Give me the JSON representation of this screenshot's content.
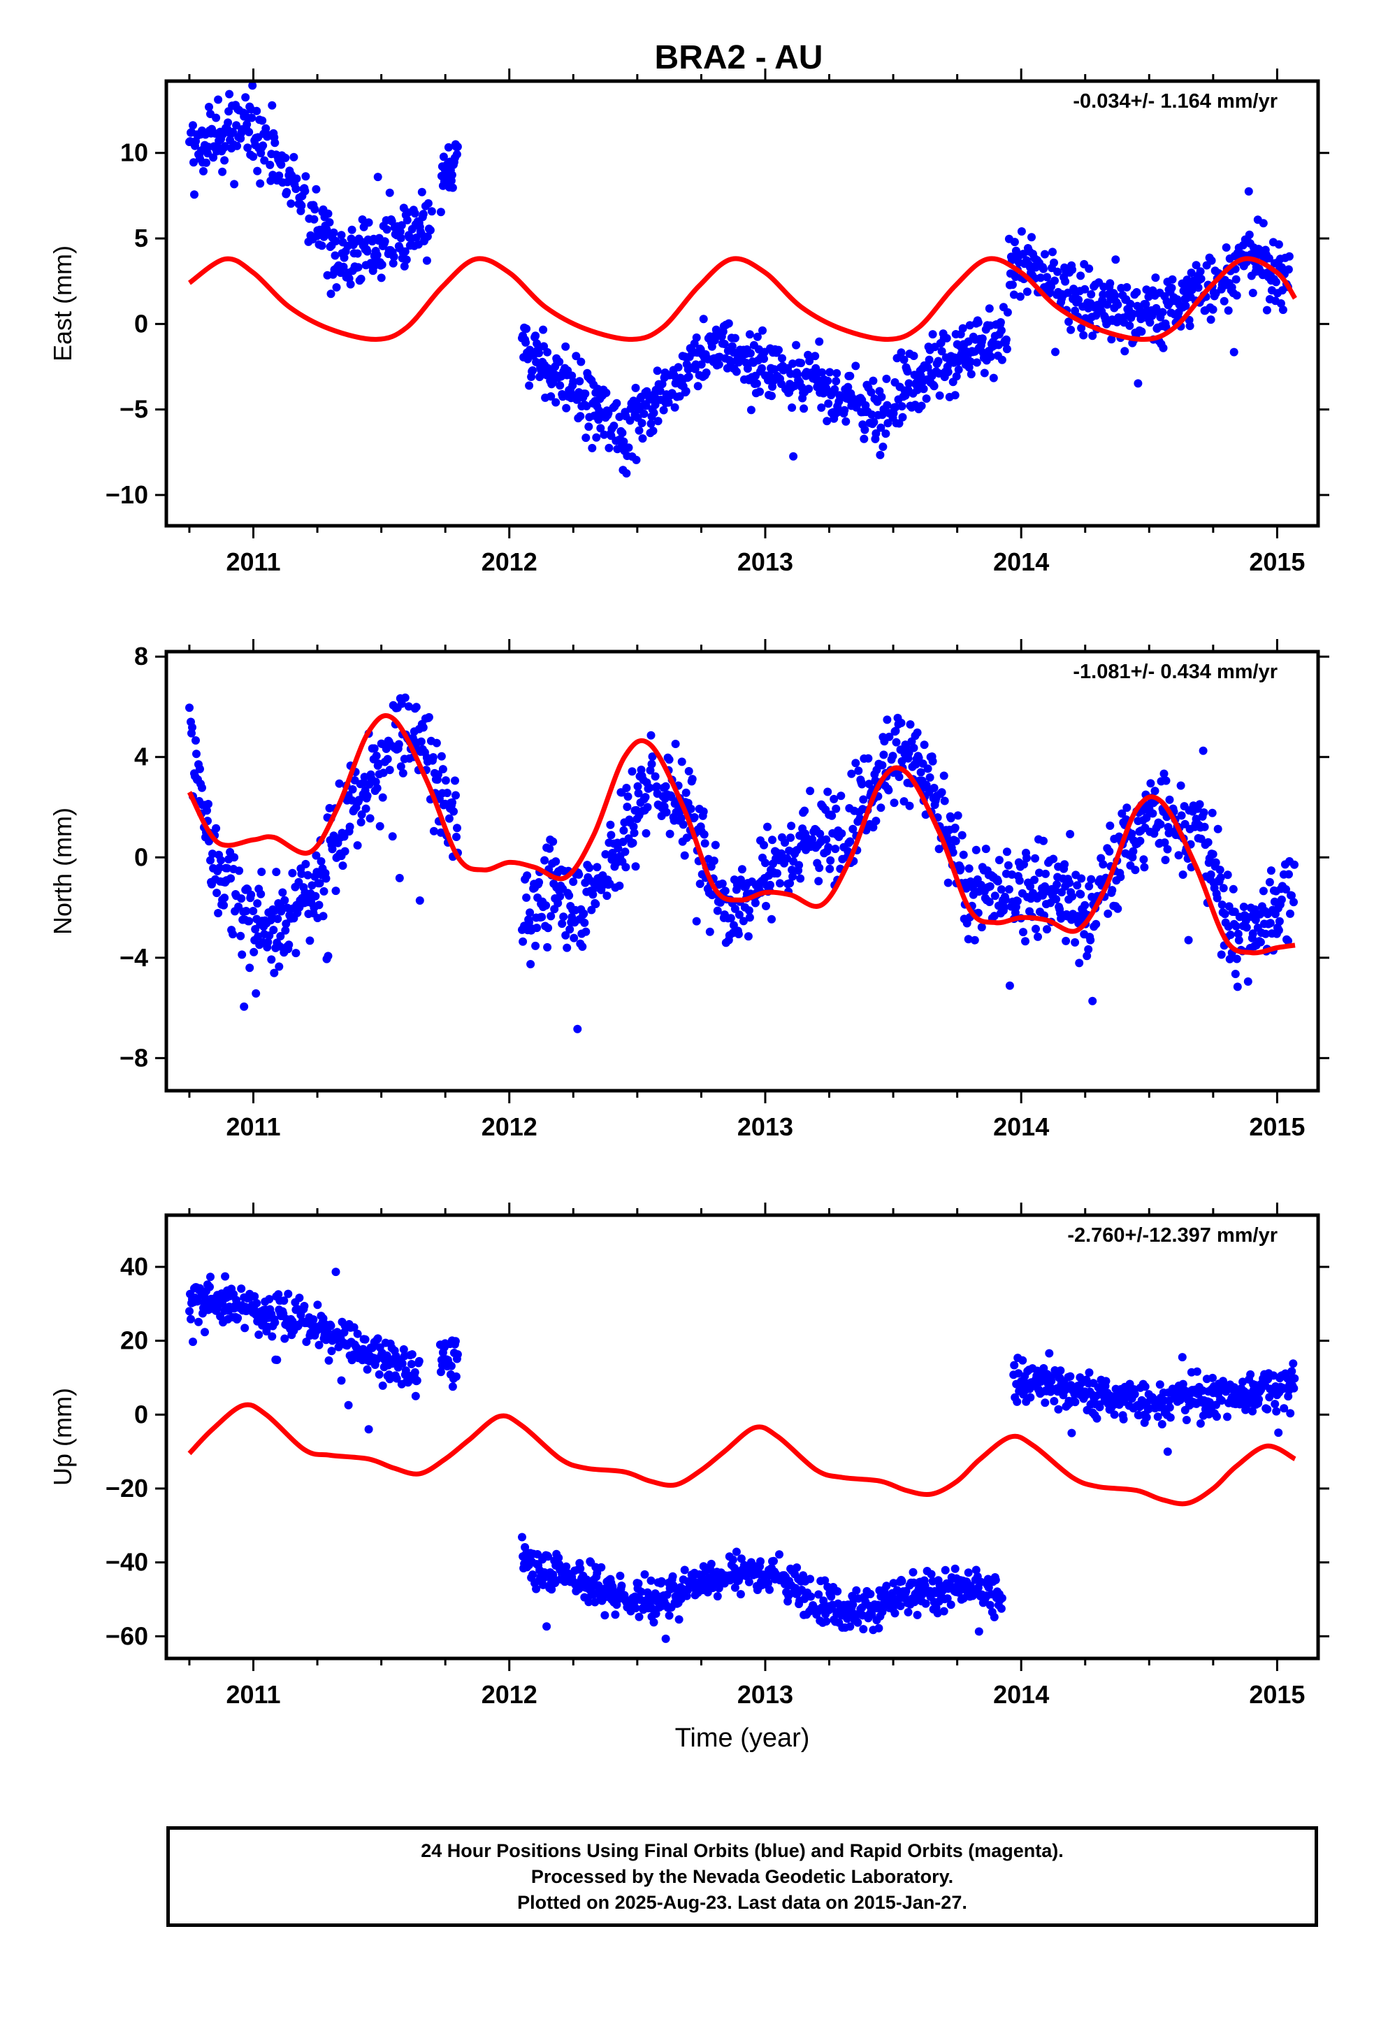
{
  "colors": {
    "final_orbits": "#0000ff",
    "model": "#ff0000",
    "axes": "#000000",
    "background": "#ffffff"
  },
  "chart_data": [
    {
      "type": "scatter",
      "title": "BRA2 - AU",
      "ylabel": "East (mm)",
      "xlabel": "",
      "rate_label": "-0.034+/- 1.164 mm/yr",
      "xlim": [
        2010.66,
        2015.16
      ],
      "ylim": [
        -11.8,
        14.2
      ],
      "yticks": [
        10,
        5,
        0,
        -5,
        -10
      ],
      "xticks": [
        2011,
        2012,
        2013,
        2014,
        2015
      ],
      "grid": false,
      "series": [
        {
          "role": "daily-positions",
          "marker": "dot",
          "segments": [
            {
              "x": [
                2010.75,
                2011.0,
                2011.2,
                2011.35,
                2011.55,
                2011.7
              ],
              "y": [
                10.0,
                11.8,
                7.0,
                3.8,
                4.8,
                5.5
              ]
            },
            {
              "x": [
                2011.73,
                2011.8
              ],
              "y": [
                8.0,
                9.5
              ]
            },
            {
              "x": [
                2012.05,
                2012.2,
                2012.45,
                2012.6,
                2012.8,
                2013.0,
                2013.25,
                2013.45,
                2013.5,
                2013.7,
                2013.95
              ],
              "y": [
                -1.5,
                -3.0,
                -6.5,
                -4.0,
                -1.5,
                -2.5,
                -3.8,
                -5.5,
                -4.0,
                -2.0,
                -1.0
              ]
            },
            {
              "x": [
                2013.95,
                2014.1,
                2014.25,
                2014.4,
                2014.55,
                2014.75,
                2014.9,
                2015.05
              ],
              "y": [
                4.0,
                2.5,
                1.5,
                0.5,
                0.8,
                2.5,
                4.0,
                2.5
              ]
            }
          ]
        },
        {
          "role": "seasonal-model",
          "x": [
            2010.75,
            2010.89,
            2011.0,
            2011.14,
            2011.3,
            2011.48,
            2011.6,
            2011.74,
            2011.87,
            2012.0,
            2012.14,
            2012.3,
            2012.48,
            2012.6,
            2012.74,
            2012.87,
            2013.0,
            2013.14,
            2013.3,
            2013.48,
            2013.6,
            2013.74,
            2013.87,
            2014.0,
            2014.14,
            2014.3,
            2014.48,
            2014.6,
            2014.74,
            2014.87,
            2015.0,
            2015.07
          ],
          "y": [
            2.4,
            3.8,
            3.0,
            1.0,
            -0.3,
            -0.9,
            -0.2,
            2.2,
            3.8,
            3.0,
            1.0,
            -0.3,
            -0.9,
            -0.2,
            2.2,
            3.8,
            3.0,
            1.0,
            -0.3,
            -0.9,
            -0.2,
            2.2,
            3.8,
            3.0,
            1.0,
            -0.3,
            -0.9,
            -0.2,
            2.2,
            3.8,
            3.0,
            1.5
          ]
        }
      ]
    },
    {
      "type": "scatter",
      "ylabel": "North (mm)",
      "xlabel": "",
      "rate_label": "-1.081+/- 0.434 mm/yr",
      "xlim": [
        2010.66,
        2015.16
      ],
      "ylim": [
        -9.3,
        8.2
      ],
      "yticks": [
        8,
        4,
        0,
        -4,
        -8
      ],
      "xticks": [
        2011,
        2012,
        2013,
        2014,
        2015
      ],
      "grid": false,
      "series": [
        {
          "role": "daily-positions",
          "marker": "dot",
          "segments": [
            {
              "x": [
                2010.75,
                2010.85,
                2011.0,
                2011.1,
                2011.25,
                2011.4,
                2011.55,
                2011.65,
                2011.75,
                2011.8
              ],
              "y": [
                5.0,
                -0.5,
                -2.5,
                -3.0,
                -1.0,
                2.0,
                4.5,
                5.0,
                2.0,
                1.5
              ]
            },
            {
              "x": [
                2012.05,
                2012.2,
                2012.3,
                2012.45,
                2012.55,
                2012.7,
                2012.85,
                2013.0,
                2013.15,
                2013.3,
                2013.45,
                2013.55,
                2013.65,
                2013.8,
                2013.95,
                2014.1,
                2014.25,
                2014.4,
                2014.55,
                2014.7,
                2014.85,
                2015.0,
                2015.07
              ],
              "y": [
                -2.0,
                -1.5,
                -2.0,
                1.0,
                3.0,
                2.0,
                -2.5,
                -0.5,
                0.5,
                1.0,
                3.5,
                4.5,
                2.5,
                -1.5,
                -1.5,
                -1.0,
                -2.5,
                0.5,
                2.0,
                1.0,
                -3.5,
                -2.0,
                -1.5
              ]
            }
          ]
        },
        {
          "role": "seasonal-model",
          "x": [
            2010.75,
            2010.86,
            2011.0,
            2011.08,
            2011.22,
            2011.33,
            2011.45,
            2011.55,
            2011.68,
            2011.8,
            2011.9,
            2012.0,
            2012.1,
            2012.22,
            2012.33,
            2012.45,
            2012.55,
            2012.68,
            2012.8,
            2012.9,
            2013.0,
            2013.1,
            2013.22,
            2013.33,
            2013.45,
            2013.55,
            2013.68,
            2013.8,
            2013.9,
            2014.0,
            2014.1,
            2014.22,
            2014.33,
            2014.45,
            2014.55,
            2014.68,
            2014.8,
            2014.9,
            2015.0,
            2015.07
          ],
          "y": [
            2.6,
            0.6,
            0.7,
            0.8,
            0.2,
            2.0,
            5.0,
            5.5,
            3.0,
            0.0,
            -0.5,
            -0.2,
            -0.4,
            -0.8,
            0.9,
            4.0,
            4.5,
            2.0,
            -1.2,
            -1.7,
            -1.4,
            -1.5,
            -1.9,
            -0.1,
            3.0,
            3.4,
            1.0,
            -2.1,
            -2.6,
            -2.4,
            -2.5,
            -2.9,
            -1.2,
            1.9,
            2.2,
            -0.3,
            -3.3,
            -3.8,
            -3.6,
            -3.5
          ]
        }
      ]
    },
    {
      "type": "scatter",
      "ylabel": "Up (mm)",
      "xlabel": "Time (year)",
      "rate_label": "-2.760+/-12.397 mm/yr",
      "xlim": [
        2010.66,
        2015.16
      ],
      "ylim": [
        -66,
        54
      ],
      "yticks": [
        40,
        20,
        0,
        -20,
        -40,
        -60
      ],
      "xticks": [
        2011,
        2012,
        2013,
        2014,
        2015
      ],
      "grid": false,
      "series": [
        {
          "role": "daily-positions",
          "marker": "dot",
          "segments": [
            {
              "x": [
                2010.75,
                2010.9,
                2011.05,
                2011.2,
                2011.35,
                2011.5,
                2011.65
              ],
              "y": [
                32.0,
                30.0,
                27.0,
                25.0,
                20.0,
                15.0,
                12.0
              ]
            },
            {
              "x": [
                2011.73,
                2011.8
              ],
              "y": [
                17.0,
                12.0
              ]
            },
            {
              "x": [
                2012.05,
                2012.15,
                2012.3,
                2012.45,
                2012.6,
                2012.75,
                2012.9,
                2013.05,
                2013.2,
                2013.35,
                2013.5,
                2013.65,
                2013.8,
                2013.93
              ],
              "y": [
                -40.0,
                -42.0,
                -45.0,
                -50.0,
                -50.0,
                -45.0,
                -42.0,
                -44.0,
                -50.0,
                -53.0,
                -50.0,
                -48.0,
                -47.0,
                -49.0
              ]
            },
            {
              "x": [
                2013.97,
                2014.1,
                2014.25,
                2014.4,
                2014.55,
                2014.7,
                2014.85,
                2015.0,
                2015.07
              ],
              "y": [
                10.0,
                8.0,
                6.0,
                4.0,
                4.0,
                5.0,
                5.0,
                7.0,
                10.0
              ]
            }
          ]
        },
        {
          "role": "seasonal-model",
          "x": [
            2010.75,
            2010.84,
            2010.96,
            2011.05,
            2011.2,
            2011.3,
            2011.45,
            2011.55,
            2011.65,
            2011.75,
            2011.84,
            2011.96,
            2012.05,
            2012.2,
            2012.3,
            2012.45,
            2012.55,
            2012.65,
            2012.75,
            2012.84,
            2012.96,
            2013.05,
            2013.2,
            2013.3,
            2013.45,
            2013.55,
            2013.65,
            2013.75,
            2013.84,
            2013.96,
            2014.05,
            2014.2,
            2014.3,
            2014.45,
            2014.55,
            2014.65,
            2014.75,
            2014.84,
            2014.96,
            2015.07
          ],
          "y": [
            -10.5,
            -4.0,
            2.5,
            0.0,
            -9.5,
            -11.0,
            -12.0,
            -14.5,
            -16.0,
            -12.0,
            -7.0,
            -0.5,
            -3.0,
            -12.0,
            -14.5,
            -15.5,
            -18.0,
            -19.0,
            -15.0,
            -10.0,
            -3.5,
            -6.0,
            -15.0,
            -17.0,
            -18.0,
            -20.5,
            -21.5,
            -18.0,
            -12.0,
            -6.0,
            -8.5,
            -17.0,
            -19.5,
            -20.5,
            -23.0,
            -24.0,
            -20.0,
            -14.0,
            -8.5,
            -12.0
          ]
        }
      ]
    }
  ],
  "footer": {
    "line1": "24 Hour Positions Using Final Orbits (blue) and Rapid Orbits (magenta).",
    "line2": "Processed by the Nevada Geodetic Laboratory.",
    "line3": "Plotted on 2025-Aug-23. Last data on 2015-Jan-27."
  }
}
